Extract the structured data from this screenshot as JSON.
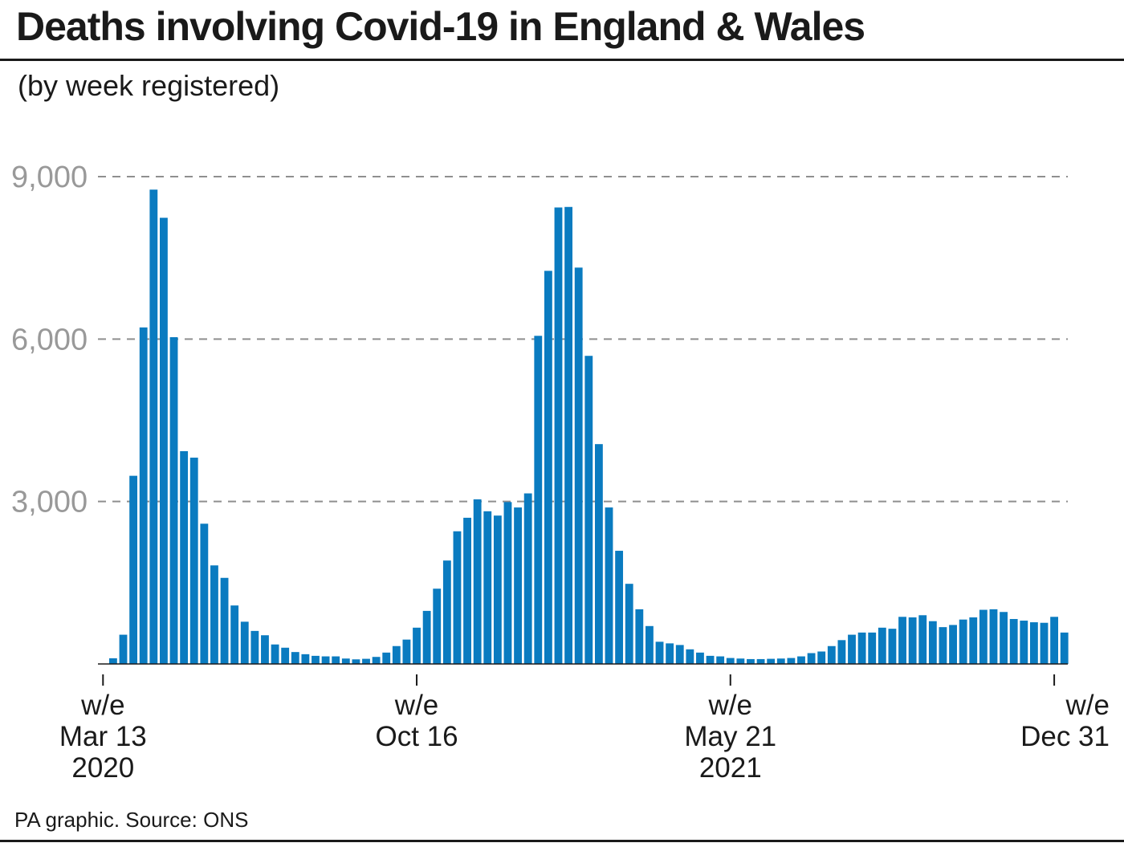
{
  "header": {
    "title": "Deaths involving Covid-19 in England & Wales",
    "subtitle": "(by week registered)"
  },
  "footer": {
    "source": "PA graphic. Source: ONS"
  },
  "chart_data": {
    "type": "bar",
    "title": "Deaths involving Covid-19 in England & Wales",
    "subtitle": "(by week registered)",
    "xlabel": "",
    "ylabel": "",
    "ylim": [
      0,
      9000
    ],
    "grid": "horizontal dashed",
    "bar_color": "#0a7bc0",
    "y_ticks": [
      {
        "value": 3000,
        "label": "3,000"
      },
      {
        "value": 6000,
        "label": "6,000"
      },
      {
        "value": 9000,
        "label": "9,000"
      }
    ],
    "x_ticks": [
      {
        "index": 0,
        "lines": [
          "w/e",
          "Mar 13",
          "2020"
        ]
      },
      {
        "index": 31,
        "lines": [
          "w/e",
          "Oct 16"
        ]
      },
      {
        "index": 62,
        "lines": [
          "w/e",
          "May 21",
          "2021"
        ]
      },
      {
        "index": 94,
        "lines": [
          "w/e",
          "Dec 31"
        ]
      }
    ],
    "categories_note": "Weekly bars, week ending Mar 13 2020 to week ending Dec 31 2021",
    "values": [
      5,
      105,
      540,
      3475,
      6215,
      8760,
      8240,
      6035,
      3930,
      3810,
      2590,
      1820,
      1590,
      1080,
      780,
      610,
      530,
      360,
      300,
      220,
      180,
      150,
      140,
      140,
      100,
      85,
      95,
      130,
      210,
      330,
      450,
      670,
      980,
      1390,
      1910,
      2450,
      2700,
      3040,
      2820,
      2740,
      2990,
      2890,
      3150,
      6060,
      7260,
      8430,
      8440,
      7320,
      5690,
      4060,
      2890,
      2090,
      1480,
      1010,
      700,
      410,
      380,
      350,
      270,
      210,
      150,
      140,
      110,
      100,
      90,
      90,
      95,
      100,
      110,
      140,
      200,
      230,
      330,
      440,
      540,
      580,
      580,
      670,
      650,
      870,
      860,
      900,
      790,
      680,
      720,
      820,
      860,
      1000,
      1010,
      960,
      830,
      800,
      770,
      760,
      870,
      580
    ]
  }
}
